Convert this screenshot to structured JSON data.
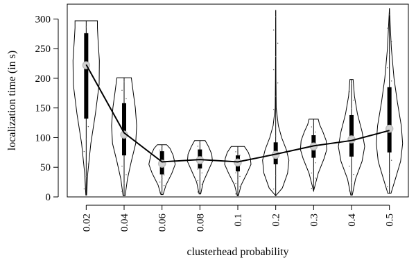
{
  "chart_data": {
    "type": "violin",
    "title": "",
    "xlabel": "clusterhead probability",
    "ylabel": "localization time (in s)",
    "ylim": [
      0,
      325
    ],
    "y_ticks": [
      0,
      50,
      100,
      150,
      200,
      250,
      300
    ],
    "categories": [
      "0.02",
      "0.04",
      "0.06",
      "0.08",
      "0.1",
      "0.2",
      "0.3",
      "0.4",
      "0.5"
    ],
    "mean_line": [
      223,
      108,
      59,
      63,
      59,
      72,
      86,
      95,
      112
    ],
    "median": [
      222,
      105,
      56,
      62,
      58,
      71,
      85,
      97,
      115
    ],
    "min": [
      3,
      2,
      4,
      5,
      2,
      2,
      10,
      3,
      6
    ],
    "max": [
      297,
      201,
      88,
      95,
      85,
      315,
      131,
      198,
      318
    ],
    "box_lower": [
      132,
      70,
      38,
      48,
      43,
      55,
      66,
      68,
      75
    ],
    "box_upper": [
      276,
      158,
      77,
      80,
      70,
      92,
      104,
      138,
      185
    ],
    "density_shapes": [
      [
        [
          3,
          0.03
        ],
        [
          40,
          0.12
        ],
        [
          90,
          0.35
        ],
        [
          140,
          0.7
        ],
        [
          190,
          0.98
        ],
        [
          230,
          1.0
        ],
        [
          265,
          0.9
        ],
        [
          285,
          0.85
        ],
        [
          297,
          0.85
        ]
      ],
      [
        [
          2,
          0.08
        ],
        [
          30,
          0.25
        ],
        [
          60,
          0.55
        ],
        [
          90,
          0.88
        ],
        [
          120,
          0.95
        ],
        [
          150,
          0.85
        ],
        [
          175,
          0.7
        ],
        [
          192,
          0.6
        ],
        [
          201,
          0.55
        ]
      ],
      [
        [
          4,
          0.08
        ],
        [
          20,
          0.3
        ],
        [
          40,
          0.75
        ],
        [
          55,
          1.0
        ],
        [
          70,
          0.85
        ],
        [
          82,
          0.6
        ],
        [
          88,
          0.35
        ]
      ],
      [
        [
          5,
          0.06
        ],
        [
          25,
          0.25
        ],
        [
          45,
          0.65
        ],
        [
          60,
          0.95
        ],
        [
          72,
          0.9
        ],
        [
          85,
          0.65
        ],
        [
          95,
          0.4
        ]
      ],
      [
        [
          2,
          0.04
        ],
        [
          20,
          0.25
        ],
        [
          40,
          0.7
        ],
        [
          55,
          1.0
        ],
        [
          65,
          0.95
        ],
        [
          75,
          0.8
        ],
        [
          85,
          0.5
        ]
      ],
      [
        [
          2,
          0.0
        ],
        [
          15,
          0.5
        ],
        [
          40,
          0.9
        ],
        [
          62,
          1.0
        ],
        [
          80,
          0.8
        ],
        [
          100,
          0.45
        ],
        [
          120,
          0.2
        ],
        [
          150,
          0.04
        ],
        [
          200,
          0.02
        ],
        [
          315,
          0.0
        ]
      ],
      [
        [
          10,
          0.0
        ],
        [
          40,
          0.35
        ],
        [
          65,
          0.8
        ],
        [
          80,
          1.0
        ],
        [
          95,
          0.95
        ],
        [
          110,
          0.7
        ],
        [
          122,
          0.45
        ],
        [
          131,
          0.35
        ]
      ],
      [
        [
          3,
          0.06
        ],
        [
          30,
          0.3
        ],
        [
          60,
          0.8
        ],
        [
          85,
          1.0
        ],
        [
          110,
          0.8
        ],
        [
          140,
          0.45
        ],
        [
          170,
          0.22
        ],
        [
          198,
          0.12
        ]
      ],
      [
        [
          6,
          0.12
        ],
        [
          30,
          0.45
        ],
        [
          60,
          0.85
        ],
        [
          90,
          1.0
        ],
        [
          120,
          0.9
        ],
        [
          160,
          0.6
        ],
        [
          200,
          0.35
        ],
        [
          250,
          0.15
        ],
        [
          290,
          0.06
        ],
        [
          318,
          0.0
        ]
      ]
    ],
    "grid": false,
    "legend": "none"
  }
}
